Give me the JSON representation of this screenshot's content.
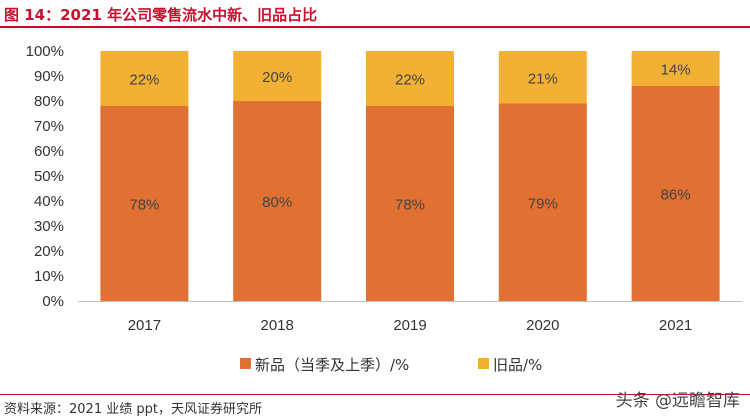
{
  "figure_title": "图 14：2021 年公司零售流水中新、旧品占比",
  "source_note": "资料来源：2021 业绩 ppt，天风证券研究所",
  "watermark": "头条 @远瞻智库",
  "colors": {
    "new": "#E07133",
    "old": "#F2B134",
    "title_red": "#c8102e"
  },
  "chart_data": {
    "type": "bar",
    "stacked": true,
    "categories": [
      "2017",
      "2018",
      "2019",
      "2020",
      "2021"
    ],
    "series": [
      {
        "name": "新品（当季及上季）/%",
        "values": [
          78,
          80,
          78,
          79,
          86
        ],
        "labels": [
          "78%",
          "80%",
          "78%",
          "79%",
          "86%"
        ]
      },
      {
        "name": "旧品/%",
        "values": [
          22,
          20,
          22,
          21,
          14
        ],
        "labels": [
          "22%",
          "20%",
          "22%",
          "21%",
          "14%"
        ]
      }
    ],
    "y_ticks": [
      "0%",
      "10%",
      "20%",
      "30%",
      "40%",
      "50%",
      "60%",
      "70%",
      "80%",
      "90%",
      "100%"
    ],
    "ylim": [
      0,
      100
    ],
    "grid": false,
    "legend_position": "bottom"
  }
}
